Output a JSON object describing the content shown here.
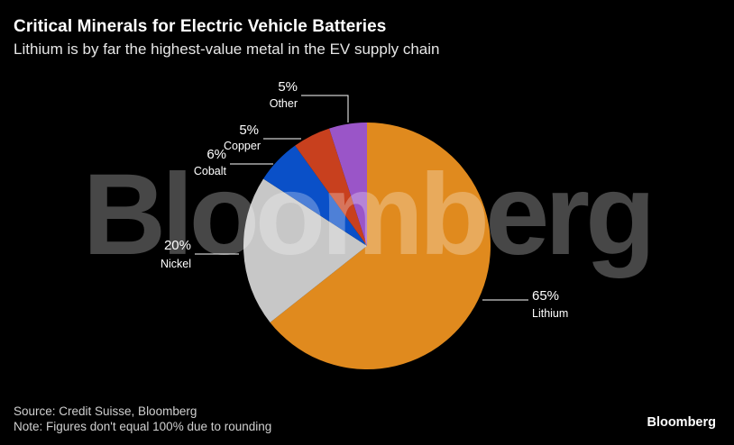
{
  "chart_data": {
    "type": "pie",
    "title": "Critical Minerals for Electric Vehicle Batteries",
    "subtitle": "Lithium is by far the highest-value metal in the EV supply chain",
    "slices": [
      {
        "label": "Lithium",
        "value": 65,
        "value_label": "65%",
        "color": "#e08a1e"
      },
      {
        "label": "Nickel",
        "value": 20,
        "value_label": "20%",
        "color": "#c7c7c7"
      },
      {
        "label": "Cobalt",
        "value": 6,
        "value_label": "6%",
        "color": "#0a50c8"
      },
      {
        "label": "Copper",
        "value": 5,
        "value_label": "5%",
        "color": "#c8401e"
      },
      {
        "label": "Other",
        "value": 5,
        "value_label": "5%",
        "color": "#9a55c8"
      }
    ]
  },
  "watermark": "Bloomberg",
  "footer": {
    "source": "Source: Credit Suisse, Bloomberg",
    "note": "Note: Figures don't equal 100% due to rounding",
    "brand": "Bloomberg"
  }
}
